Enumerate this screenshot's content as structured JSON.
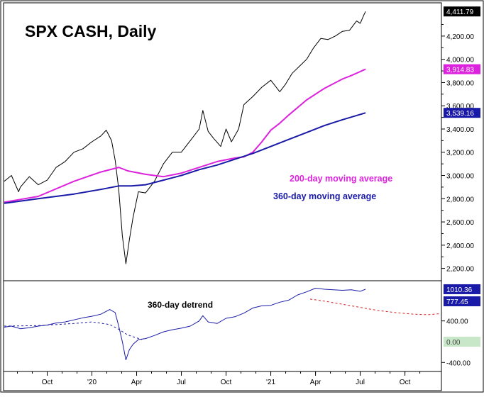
{
  "chart_data": [
    {
      "type": "line",
      "title": "SPX CASH, Daily",
      "y_axis_side": "right",
      "ylim": [
        2100,
        4480
      ],
      "y_ticks": [
        2200,
        2400,
        2600,
        2800,
        3000,
        3200,
        3400,
        3600,
        3800,
        4000,
        4200
      ],
      "y_tick_labels": [
        "2,200.00",
        "2,400.00",
        "2,600.00",
        "2,800.00",
        "3,000.00",
        "3,200.00",
        "3,400.00",
        "3,600.00",
        "3,800.00",
        "4,000.00",
        "4,200.00"
      ],
      "x_ticks": [
        {
          "label": "Oct",
          "x": 2019.75
        },
        {
          "label": "'20",
          "x": 2020.0
        },
        {
          "label": "Apr",
          "x": 2020.25
        },
        {
          "label": "Jul",
          "x": 2020.5
        },
        {
          "label": "Oct",
          "x": 2020.75
        },
        {
          "label": "'21",
          "x": 2021.0
        },
        {
          "label": "Apr",
          "x": 2021.25
        },
        {
          "label": "Jul",
          "x": 2021.5
        },
        {
          "label": "Oct",
          "x": 2021.75
        }
      ],
      "xlim": [
        2019.51,
        2021.95
      ],
      "grid": false,
      "series": [
        {
          "name": "SPX",
          "color": "#000000",
          "label": "4,411.79",
          "label_bg": "#000000",
          "label_color": "#ffffff",
          "label_value": 4411.79,
          "x": [
            2019.51,
            2019.55,
            2019.59,
            2019.6,
            2019.65,
            2019.7,
            2019.75,
            2019.8,
            2019.85,
            2019.9,
            2019.95,
            2020.0,
            2020.05,
            2020.08,
            2020.11,
            2020.13,
            2020.15,
            2020.17,
            2020.19,
            2020.21,
            2020.23,
            2020.26,
            2020.3,
            2020.35,
            2020.4,
            2020.45,
            2020.5,
            2020.55,
            2020.6,
            2020.62,
            2020.65,
            2020.68,
            2020.72,
            2020.75,
            2020.78,
            2020.82,
            2020.85,
            2020.9,
            2020.95,
            2021.0,
            2021.05,
            2021.08,
            2021.12,
            2021.16,
            2021.2,
            2021.24,
            2021.28,
            2021.32,
            2021.36,
            2021.4,
            2021.44,
            2021.48,
            2021.5,
            2021.52,
            2021.53
          ],
          "y": [
            2950,
            3000,
            2860,
            2900,
            2990,
            2920,
            2960,
            3070,
            3120,
            3200,
            3230,
            3290,
            3340,
            3390,
            3300,
            3130,
            2880,
            2480,
            2240,
            2450,
            2640,
            2860,
            2850,
            2950,
            3100,
            3200,
            3200,
            3300,
            3400,
            3560,
            3380,
            3320,
            3250,
            3400,
            3290,
            3400,
            3610,
            3680,
            3760,
            3820,
            3720,
            3780,
            3880,
            3940,
            4000,
            4100,
            4180,
            4170,
            4200,
            4240,
            4250,
            4330,
            4310,
            4380,
            4411.79
          ]
        },
        {
          "name": "200-day moving average",
          "color": "#dd22dd",
          "label": "3,914.83",
          "label_bg": "#dd22dd",
          "label_color": "#ffffff",
          "label_value": 3914.83,
          "x": [
            2019.51,
            2019.7,
            2019.9,
            2020.05,
            2020.15,
            2020.2,
            2020.3,
            2020.4,
            2020.5,
            2020.6,
            2020.7,
            2020.8,
            2020.85,
            2020.9,
            2020.95,
            2021.0,
            2021.05,
            2021.1,
            2021.2,
            2021.3,
            2021.4,
            2021.45,
            2021.53
          ],
          "y": [
            2770,
            2820,
            2950,
            3030,
            3070,
            3040,
            3010,
            2990,
            3020,
            3070,
            3120,
            3150,
            3160,
            3200,
            3290,
            3390,
            3450,
            3520,
            3650,
            3750,
            3830,
            3860,
            3914.83
          ]
        },
        {
          "name": "360-day moving average",
          "color": "#1a1aa8",
          "label": "3,539.16",
          "label_bg": "#1a1aa8",
          "label_color": "#ffffff",
          "label_value": 3539.16,
          "x": [
            2019.51,
            2019.7,
            2019.9,
            2020.05,
            2020.15,
            2020.22,
            2020.3,
            2020.4,
            2020.5,
            2020.6,
            2020.7,
            2020.8,
            2020.9,
            2021.0,
            2021.1,
            2021.2,
            2021.3,
            2021.4,
            2021.53
          ],
          "y": [
            2760,
            2800,
            2840,
            2880,
            2910,
            2910,
            2920,
            2960,
            3000,
            3050,
            3090,
            3140,
            3190,
            3250,
            3310,
            3370,
            3430,
            3480,
            3539.16
          ]
        }
      ],
      "annotations": [
        {
          "text": "200-day moving average",
          "color": "#dd22dd"
        },
        {
          "text": "360-day moving average",
          "color": "#1a1aa8"
        }
      ]
    },
    {
      "type": "line",
      "title": "360-day detrend",
      "y_axis_side": "right",
      "ylim": [
        -560,
        1160
      ],
      "y_ticks": [
        -400,
        400
      ],
      "y_tick_labels": [
        "-400.00",
        "400.00"
      ],
      "zero_label": "0.00",
      "zero_label_bg": "#c8e6c8",
      "xlim": [
        2019.51,
        2021.95
      ],
      "series": [
        {
          "name": "360-day detrend",
          "color": "#1a1aa8",
          "label": "1010.36",
          "label_bg": "#1a1aa8",
          "label_color": "#ffffff",
          "label_value": 1010.36,
          "x": [
            2019.51,
            2019.55,
            2019.6,
            2019.65,
            2019.7,
            2019.75,
            2019.8,
            2019.85,
            2019.9,
            2019.95,
            2020.0,
            2020.05,
            2020.1,
            2020.13,
            2020.15,
            2020.17,
            2020.19,
            2020.21,
            2020.23,
            2020.26,
            2020.3,
            2020.35,
            2020.4,
            2020.45,
            2020.5,
            2020.55,
            2020.6,
            2020.62,
            2020.65,
            2020.7,
            2020.75,
            2020.8,
            2020.85,
            2020.9,
            2020.95,
            2021.0,
            2021.05,
            2021.1,
            2021.15,
            2021.2,
            2021.25,
            2021.3,
            2021.35,
            2021.4,
            2021.45,
            2021.5,
            2021.53
          ],
          "y": [
            280,
            300,
            250,
            270,
            300,
            320,
            360,
            380,
            420,
            460,
            490,
            530,
            620,
            560,
            300,
            0,
            -350,
            -150,
            -50,
            40,
            60,
            120,
            190,
            230,
            260,
            300,
            400,
            500,
            380,
            350,
            450,
            480,
            550,
            650,
            690,
            700,
            760,
            800,
            900,
            960,
            1030,
            1010,
            1000,
            990,
            1000,
            970,
            1010.36
          ]
        },
        {
          "name": "detrend-blue-dashed",
          "color": "#1a1aa8",
          "dash": true,
          "x": [
            2019.51,
            2019.7,
            2019.9,
            2020.0,
            2020.1,
            2020.15,
            2020.2,
            2020.28
          ],
          "y": [
            300,
            310,
            350,
            380,
            330,
            240,
            130,
            40
          ]
        },
        {
          "name": "detrend-red-dashed",
          "color": "#d21e1e",
          "dash": true,
          "label": "777.45",
          "label_bg": "#1a1aa8",
          "label_color": "#ffffff",
          "label_value": 777.45,
          "x": [
            2021.22,
            2021.3,
            2021.4,
            2021.5,
            2021.6,
            2021.7,
            2021.8,
            2021.88,
            2021.95
          ],
          "y": [
            820,
            780,
            720,
            660,
            600,
            560,
            530,
            520,
            540
          ]
        }
      ]
    }
  ]
}
